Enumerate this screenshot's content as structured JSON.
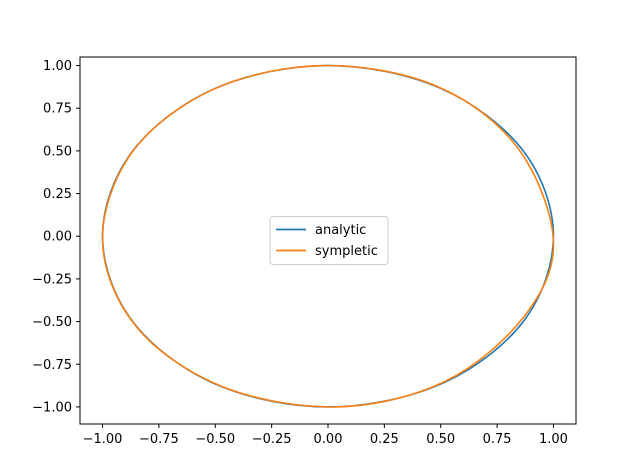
{
  "chart_data": {
    "type": "line",
    "title": "",
    "xlabel": "",
    "ylabel": "",
    "xlim": [
      -1.1,
      1.1
    ],
    "ylim": [
      -1.1,
      1.05
    ],
    "xticks": [
      -1.0,
      -0.75,
      -0.5,
      -0.25,
      0.0,
      0.25,
      0.5,
      0.75,
      1.0
    ],
    "xtick_labels": [
      "−1.00",
      "−0.75",
      "−0.50",
      "−0.25",
      "0.00",
      "0.25",
      "0.50",
      "0.75",
      "1.00"
    ],
    "yticks": [
      -1.0,
      -0.75,
      -0.5,
      -0.25,
      0.0,
      0.25,
      0.5,
      0.75,
      1.0
    ],
    "ytick_labels": [
      "−1.00",
      "−0.75",
      "−0.50",
      "−0.25",
      "0.00",
      "0.25",
      "0.50",
      "0.75",
      "1.00"
    ],
    "grid": false,
    "legend_placement": "center",
    "series": [
      {
        "name": "analytic",
        "color": "#1f77b4",
        "x": [
          1.0,
          0.866,
          0.5,
          0.0,
          -0.5,
          -0.866,
          -1.0,
          -0.866,
          -0.5,
          0.0,
          0.5,
          0.866,
          1.0
        ],
        "y": [
          0.0,
          0.5,
          0.866,
          1.0,
          0.866,
          0.5,
          0.0,
          -0.5,
          -0.866,
          -1.0,
          -0.866,
          -0.5,
          0.0
        ]
      },
      {
        "name": "sympletic",
        "color": "#ff7f0e",
        "x": [
          1.0,
          0.84,
          0.48,
          -0.02,
          -0.51,
          -0.87,
          -1.0,
          -0.85,
          -0.47,
          0.04,
          0.52,
          0.87,
          1.0
        ],
        "y": [
          -0.03,
          0.52,
          0.88,
          1.0,
          0.86,
          0.49,
          -0.03,
          -0.53,
          -0.88,
          -1.0,
          -0.85,
          -0.47,
          0.02
        ]
      }
    ]
  }
}
